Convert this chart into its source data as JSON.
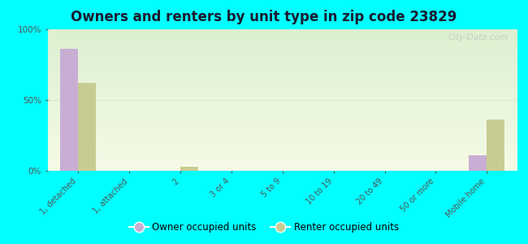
{
  "title": "Owners and renters by unit type in zip code 23829",
  "categories": [
    "1, detached",
    "1, attached",
    "2",
    "3 or 4",
    "5 to 9",
    "10 to 19",
    "20 to 49",
    "50 or more",
    "Mobile home"
  ],
  "owner_values": [
    86,
    0,
    0,
    0,
    0,
    0,
    0,
    0,
    11
  ],
  "renter_values": [
    62,
    0,
    3,
    0,
    0,
    0,
    0,
    0,
    36
  ],
  "owner_color": "#c9aed4",
  "renter_color": "#c8cc92",
  "background_color": "#00ffff",
  "ylim": [
    0,
    100
  ],
  "yticks": [
    0,
    50,
    100
  ],
  "ytick_labels": [
    "0%",
    "50%",
    "100%"
  ],
  "watermark": "City-Data.com",
  "legend_owner": "Owner occupied units",
  "legend_renter": "Renter occupied units",
  "bar_width": 0.35,
  "title_color": "#1a1a2e",
  "tick_color": "#555555",
  "grid_color": "#e0e8d0",
  "title_fontsize": 12
}
